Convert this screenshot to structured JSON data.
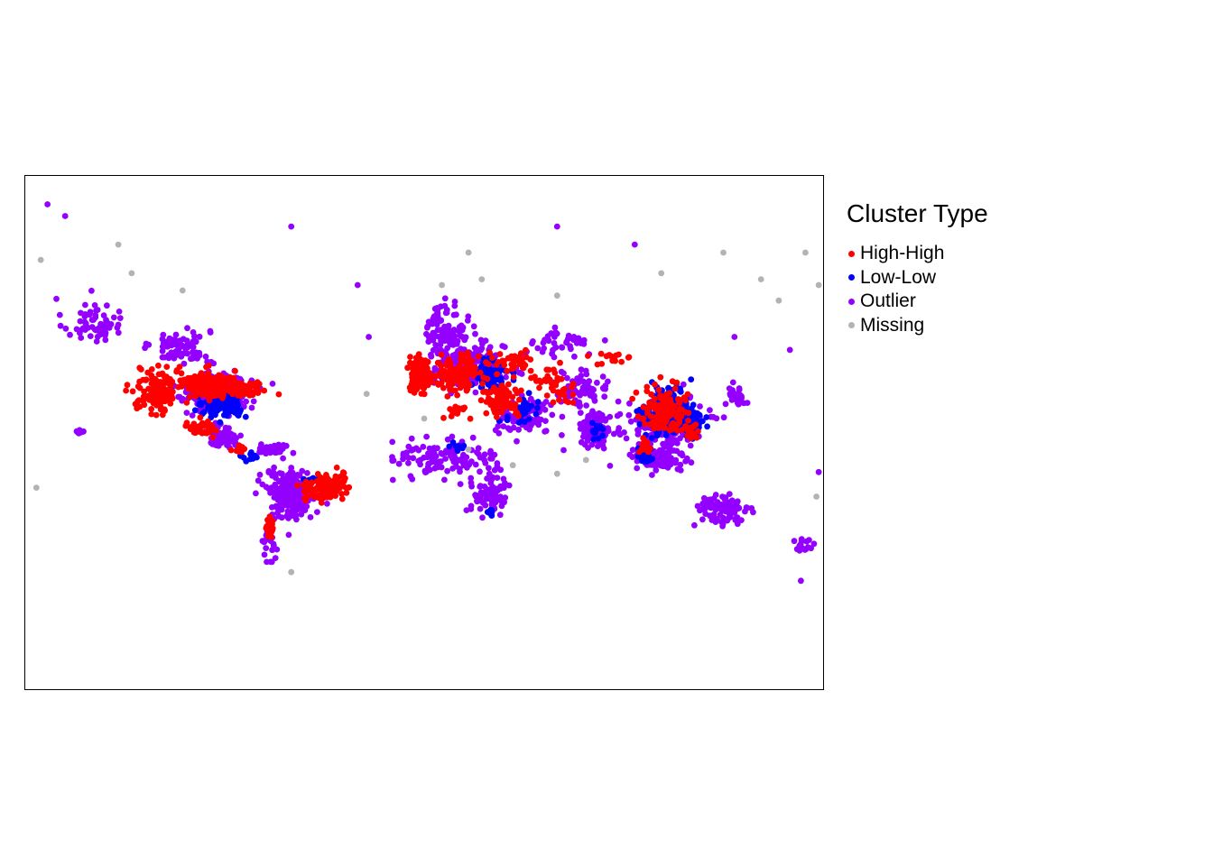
{
  "map": {
    "projection": "world, Mercator-like",
    "extent_lon": [
      -180,
      180
    ],
    "extent_lat": [
      -78,
      84
    ],
    "colors": {
      "High-High": "#ff0000",
      "Low-Low": "#0000ff",
      "Outlier": "#9400ff",
      "Missing": "#b3b3b3"
    }
  },
  "legend": {
    "title": "Cluster Type",
    "items": [
      {
        "label": "High-High",
        "color": "#ff0000"
      },
      {
        "label": "Low-Low",
        "color": "#0000ff"
      },
      {
        "label": "Outlier",
        "color": "#9400ff"
      },
      {
        "label": "Missing",
        "color": "#b3b3b3"
      }
    ]
  },
  "chart_data": {
    "type": "scatter",
    "title": "",
    "xlabel": "",
    "ylabel": "",
    "xlim": [
      -180,
      180
    ],
    "ylim": [
      -78,
      84
    ],
    "grid": false,
    "legend_position": "right",
    "series": [
      {
        "name": "High-High",
        "color": "#ff0000",
        "regions": [
          {
            "lon": -120,
            "lat": 40,
            "spread": [
              8,
              9
            ],
            "n": 140
          },
          {
            "lon": -98,
            "lat": 43,
            "spread": [
              10,
              5
            ],
            "n": 170
          },
          {
            "lon": -80,
            "lat": 41,
            "spread": [
              7,
              3
            ],
            "n": 70
          },
          {
            "lon": -100,
            "lat": 22,
            "spread": [
              6,
              4
            ],
            "n": 40
          },
          {
            "lon": -84,
            "lat": 10,
            "spread": [
              3,
              2
            ],
            "n": 15
          },
          {
            "lon": -45,
            "lat": -12,
            "spread": [
              8,
              7
            ],
            "n": 120
          },
          {
            "lon": -70,
            "lat": -33,
            "spread": [
              2,
              4
            ],
            "n": 20
          },
          {
            "lon": -2,
            "lat": 47,
            "spread": [
              4,
              6
            ],
            "n": 130
          },
          {
            "lon": 15,
            "lat": 47,
            "spread": [
              10,
              6
            ],
            "n": 110
          },
          {
            "lon": 35,
            "lat": 36,
            "spread": [
              9,
              7
            ],
            "n": 80
          },
          {
            "lon": 40,
            "lat": 52,
            "spread": [
              10,
              4
            ],
            "n": 40
          },
          {
            "lon": 60,
            "lat": 43,
            "spread": [
              10,
              6
            ],
            "n": 40
          },
          {
            "lon": 108,
            "lat": 32,
            "spread": [
              9,
              10
            ],
            "n": 120
          },
          {
            "lon": 120,
            "lat": 20,
            "spread": [
              4,
              4
            ],
            "n": 20
          },
          {
            "lon": 100,
            "lat": 12,
            "spread": [
              3,
              3
            ],
            "n": 20
          },
          {
            "lon": 15,
            "lat": 30,
            "spread": [
              5,
              4
            ],
            "n": 15
          },
          {
            "lon": 85,
            "lat": 54,
            "spread": [
              10,
              2
            ],
            "n": 15
          }
        ]
      },
      {
        "name": "Low-Low",
        "color": "#0000ff",
        "regions": [
          {
            "lon": -90,
            "lat": 34,
            "spread": [
              8,
              5
            ],
            "n": 130
          },
          {
            "lon": -80,
            "lat": 5,
            "spread": [
              4,
              3
            ],
            "n": 10
          },
          {
            "lon": -50,
            "lat": -8,
            "spread": [
              4,
              4
            ],
            "n": 12
          },
          {
            "lon": 30,
            "lat": 47,
            "spread": [
              8,
              6
            ],
            "n": 60
          },
          {
            "lon": 45,
            "lat": 30,
            "spread": [
              8,
              6
            ],
            "n": 30
          },
          {
            "lon": 15,
            "lat": 12,
            "spread": [
              3,
              4
            ],
            "n": 8
          },
          {
            "lon": 30,
            "lat": -25,
            "spread": [
              2,
              2
            ],
            "n": 8
          },
          {
            "lon": 78,
            "lat": 20,
            "spread": [
              4,
              4
            ],
            "n": 15
          },
          {
            "lon": 110,
            "lat": 30,
            "spread": [
              10,
              10
            ],
            "n": 200
          },
          {
            "lon": 100,
            "lat": 8,
            "spread": [
              3,
              7
            ],
            "n": 25
          },
          {
            "lon": 122,
            "lat": 24,
            "spread": [
              4,
              6
            ],
            "n": 30
          }
        ]
      },
      {
        "name": "Outlier",
        "color": "#9400ff",
        "regions": [
          {
            "lon": -150,
            "lat": 64,
            "spread": [
              12,
              5
            ],
            "n": 60
          },
          {
            "lon": -110,
            "lat": 57,
            "spread": [
              12,
              5
            ],
            "n": 80
          },
          {
            "lon": -95,
            "lat": 40,
            "spread": [
              15,
              8
            ],
            "n": 200
          },
          {
            "lon": -90,
            "lat": 17,
            "spread": [
              7,
              5
            ],
            "n": 60
          },
          {
            "lon": -60,
            "lat": -15,
            "spread": [
              10,
              12
            ],
            "n": 220
          },
          {
            "lon": -70,
            "lat": -40,
            "spread": [
              3,
              8
            ],
            "n": 25
          },
          {
            "lon": -68,
            "lat": 10,
            "spread": [
              7,
              3
            ],
            "n": 40
          },
          {
            "lon": -155,
            "lat": 20,
            "spread": [
              2,
              1
            ],
            "n": 8
          },
          {
            "lon": 10,
            "lat": 62,
            "spread": [
              8,
              6
            ],
            "n": 100
          },
          {
            "lon": 20,
            "lat": 50,
            "spread": [
              15,
              7
            ],
            "n": 250
          },
          {
            "lon": 10,
            "lat": 5,
            "spread": [
              20,
              10
            ],
            "n": 120
          },
          {
            "lon": 30,
            "lat": -15,
            "spread": [
              8,
              10
            ],
            "n": 80
          },
          {
            "lon": 45,
            "lat": 28,
            "spread": [
              12,
              8
            ],
            "n": 90
          },
          {
            "lon": 70,
            "lat": 40,
            "spread": [
              12,
              8
            ],
            "n": 70
          },
          {
            "lon": 78,
            "lat": 22,
            "spread": [
              7,
              8
            ],
            "n": 110
          },
          {
            "lon": 110,
            "lat": 25,
            "spread": [
              15,
              12
            ],
            "n": 200
          },
          {
            "lon": 105,
            "lat": 5,
            "spread": [
              12,
              8
            ],
            "n": 100
          },
          {
            "lon": 135,
            "lat": -25,
            "spread": [
              12,
              8
            ],
            "n": 90
          },
          {
            "lon": 172,
            "lat": -41,
            "spread": [
              4,
              4
            ],
            "n": 15
          },
          {
            "lon": 60,
            "lat": 58,
            "spread": [
              15,
              4
            ],
            "n": 40
          },
          {
            "lon": 140,
            "lat": 38,
            "spread": [
              4,
              5
            ],
            "n": 25
          }
        ]
      },
      {
        "name": "Missing",
        "color": "#b3b3b3",
        "points": [
          [
            -173,
            76
          ],
          [
            -138,
            78
          ],
          [
            -132,
            74
          ],
          [
            -109,
            71
          ],
          [
            -60,
            -52
          ],
          [
            -26,
            39
          ],
          [
            -175,
            -12
          ],
          [
            8,
            72
          ],
          [
            20,
            77
          ],
          [
            26,
            73
          ],
          [
            60,
            70
          ],
          [
            107,
            74
          ],
          [
            135,
            77
          ],
          [
            152,
            73
          ],
          [
            160,
            69
          ],
          [
            178,
            72
          ],
          [
            172,
            77
          ],
          [
            177,
            -17
          ],
          [
            0,
            27
          ],
          [
            20,
            10
          ],
          [
            40,
            1
          ],
          [
            60,
            -4
          ],
          [
            73,
            4
          ]
        ]
      },
      {
        "name": "Outlier",
        "color": "#9400ff",
        "points": [
          [
            -170,
            82
          ],
          [
            -162,
            81
          ],
          [
            -60,
            80
          ],
          [
            -30,
            72
          ],
          [
            60,
            80
          ],
          [
            95,
            78
          ],
          [
            140,
            60
          ],
          [
            165,
            56
          ],
          [
            178,
            -3
          ],
          [
            170,
            -55
          ],
          [
            -25,
            60
          ],
          [
            -5,
            10
          ]
        ]
      }
    ]
  }
}
